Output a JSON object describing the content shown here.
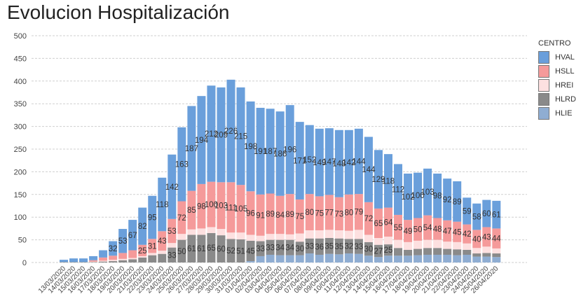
{
  "chart_data": {
    "type": "bar",
    "stacked": true,
    "title": "Evolucion Hospitalización",
    "xlabel": "",
    "ylabel": "",
    "ylim": [
      0,
      500
    ],
    "yticks": [
      0,
      50,
      100,
      150,
      200,
      250,
      300,
      350,
      400,
      450,
      500
    ],
    "grid": "horizontal dashed",
    "legend": {
      "title": "CENTRO",
      "placement": "right"
    },
    "categories": [
      "13/03/2020",
      "14/03/2020",
      "15/03/2020",
      "16/03/2020",
      "17/03/2020",
      "18/03/2020",
      "19/03/2020",
      "20/03/2020",
      "21/03/2020",
      "22/03/2020",
      "23/03/2020",
      "24/03/2020",
      "25/03/2020",
      "26/03/2020",
      "27/03/2020",
      "28/03/2020",
      "29/03/2020",
      "30/03/2020",
      "31/03/2020",
      "01/04/2020",
      "02/04/2020",
      "03/04/2020",
      "04/04/2020",
      "05/04/2020",
      "06/04/2020",
      "07/04/2020",
      "08/04/2020",
      "09/04/2020",
      "10/04/2020",
      "11/04/2020",
      "12/04/2020",
      "13/04/2020",
      "14/04/2020",
      "15/04/2020",
      "16/04/2020",
      "17/04/2020",
      "18/04/2020",
      "19/04/2020",
      "20/04/2020",
      "21/04/2020",
      "22/04/2020",
      "23/04/2020",
      "24/04/2020",
      "25/04/2020",
      "26/04/2020"
    ],
    "series": [
      {
        "name": "HLIE",
        "color": "#8fadd2",
        "values": [
          0,
          0,
          0,
          0,
          0,
          0,
          0,
          0,
          0,
          0,
          0,
          0,
          0,
          0,
          0,
          0,
          0,
          0,
          0,
          3,
          14,
          17,
          16,
          16,
          16,
          20,
          17,
          19,
          18,
          20,
          19,
          15,
          12,
          15,
          15,
          15,
          16,
          17,
          17,
          17,
          16,
          17,
          13,
          13,
          12
        ],
        "labeled": false
      },
      {
        "name": "HLRD",
        "color": "#8a8a8a",
        "values": [
          1,
          1,
          1,
          1,
          2,
          3,
          5,
          7,
          11,
          16,
          19,
          33,
          50,
          61,
          61,
          65,
          60,
          52,
          51,
          45,
          33,
          33,
          34,
          34,
          30,
          33,
          36,
          35,
          35,
          32,
          33,
          30,
          27,
          25,
          17,
          13,
          14,
          15,
          15,
          13,
          13,
          11,
          7,
          8,
          8
        ],
        "labeled_from": 11,
        "labeled_to": 33
      },
      {
        "name": "HREI",
        "color": "#fde0e0",
        "values": [
          0,
          0,
          0,
          1,
          2,
          3,
          3,
          3,
          3,
          5,
          7,
          10,
          13,
          12,
          14,
          13,
          14,
          14,
          15,
          13,
          12,
          13,
          13,
          12,
          18,
          18,
          18,
          18,
          18,
          18,
          20,
          16,
          15,
          17,
          18,
          17,
          18,
          18,
          18,
          16,
          16,
          14,
          12,
          14,
          11
        ],
        "labeled": false
      },
      {
        "name": "HSLL",
        "color": "#f59a9a",
        "values": [
          0,
          0,
          0,
          3,
          7,
          9,
          13,
          17,
          25,
          31,
          43,
          53,
          72,
          85,
          98,
          100,
          103,
          111,
          105,
          96,
          91,
          89,
          84,
          89,
          75,
          80,
          75,
          77,
          73,
          80,
          79,
          72,
          65,
          64,
          55,
          49,
          50,
          54,
          48,
          47,
          45,
          42,
          40,
          43,
          44
        ],
        "labeled_from": 8,
        "labeled_to": 44
      },
      {
        "name": "HVAL",
        "color": "#6a9fdb",
        "values": [
          5,
          8,
          8,
          9,
          16,
          32,
          53,
          67,
          82,
          95,
          118,
          142,
          163,
          187,
          194,
          212,
          209,
          226,
          215,
          198,
          191,
          187,
          186,
          196,
          171,
          152,
          149,
          147,
          148,
          142,
          144,
          144,
          129,
          118,
          112,
          102,
          100,
          103,
          98,
          92,
          89,
          59,
          58,
          60,
          61
        ],
        "labeled_from": 5,
        "labeled_to": 44
      }
    ]
  }
}
